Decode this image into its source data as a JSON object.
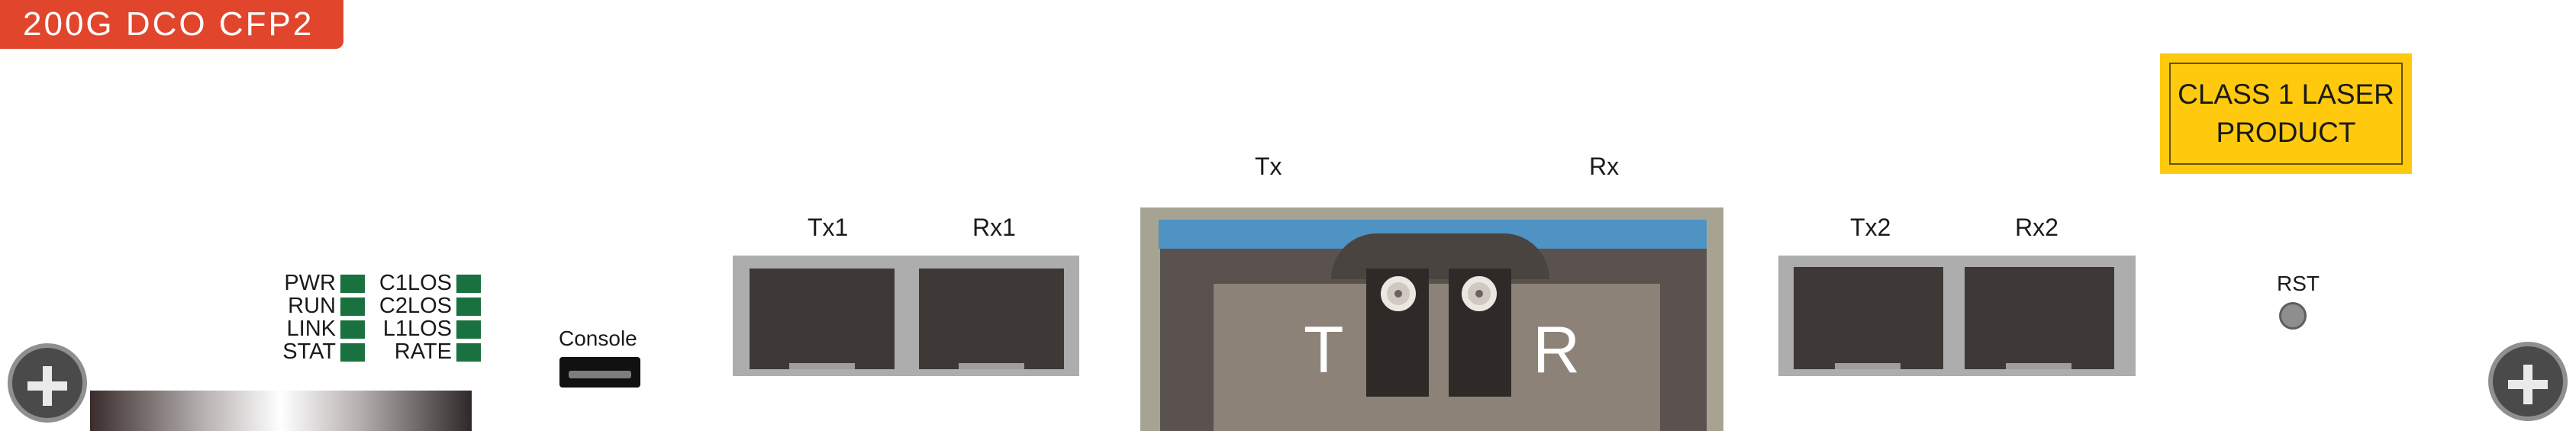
{
  "product": {
    "title": "200G DCO CFP2"
  },
  "leds": {
    "left": [
      "PWR",
      "RUN",
      "LINK",
      "STAT"
    ],
    "right": [
      "C1LOS",
      "C2LOS",
      "L1LOS",
      "RATE"
    ],
    "color": "#1a7140"
  },
  "console": {
    "label": "Console"
  },
  "ports": {
    "tx1": "Tx1",
    "rx1": "Rx1",
    "tx2": "Tx2",
    "rx2": "Rx2"
  },
  "cfp2": {
    "tx_label": "Tx",
    "rx_label": "Rx",
    "t_letter": "T",
    "r_letter": "R"
  },
  "laser_label": {
    "line1": "CLASS 1 LASER",
    "line2": "PRODUCT",
    "color": "#ffc90e"
  },
  "reset": {
    "label": "RST"
  },
  "icons": [
    "screw-left-icon",
    "screw-right-icon"
  ]
}
